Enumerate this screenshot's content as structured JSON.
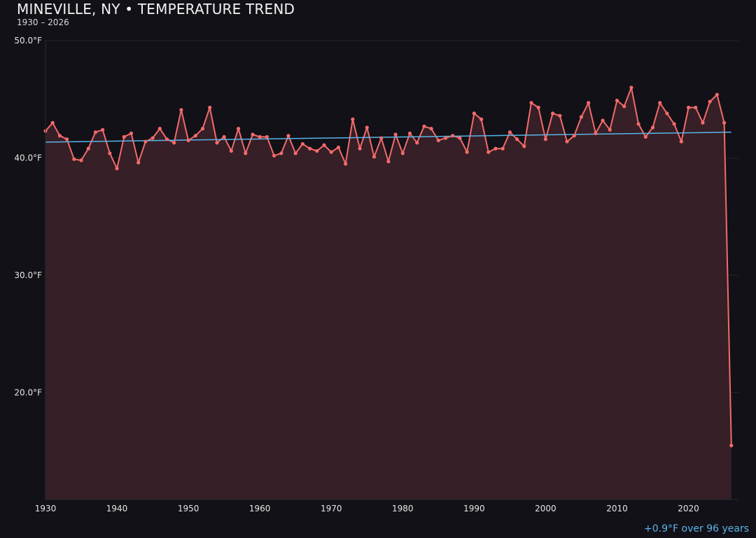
{
  "chart_data": {
    "type": "area",
    "title": "MINEVILLE, NY • TEMPERATURE TREND",
    "subtitle": "1930 – 2026",
    "annotation": "+0.9°F over 96 years",
    "xlim": [
      1930,
      2027
    ],
    "ylim": [
      10.9,
      50
    ],
    "grid": true,
    "x_ticks": [
      1930,
      1940,
      1950,
      1960,
      1970,
      1980,
      1990,
      2000,
      2010,
      2020
    ],
    "y_ticks": [
      20,
      30,
      40,
      50
    ],
    "y_tick_labels": [
      "20.0°F",
      "30.0°F",
      "40.0°F",
      "50.0°F"
    ],
    "x": [
      1930,
      1931,
      1932,
      1933,
      1934,
      1935,
      1936,
      1937,
      1938,
      1939,
      1940,
      1941,
      1942,
      1943,
      1944,
      1945,
      1946,
      1947,
      1948,
      1949,
      1950,
      1951,
      1952,
      1953,
      1954,
      1955,
      1956,
      1957,
      1958,
      1959,
      1960,
      1961,
      1962,
      1963,
      1964,
      1965,
      1966,
      1967,
      1968,
      1969,
      1970,
      1971,
      1972,
      1973,
      1974,
      1975,
      1976,
      1977,
      1978,
      1979,
      1980,
      1981,
      1982,
      1983,
      1984,
      1985,
      1986,
      1987,
      1988,
      1989,
      1990,
      1991,
      1992,
      1993,
      1994,
      1995,
      1996,
      1997,
      1998,
      1999,
      2000,
      2001,
      2002,
      2003,
      2004,
      2005,
      2006,
      2007,
      2008,
      2009,
      2010,
      2011,
      2012,
      2013,
      2014,
      2015,
      2016,
      2017,
      2018,
      2019,
      2020,
      2021,
      2022,
      2023,
      2024,
      2025,
      2026
    ],
    "values": [
      42.3,
      43.0,
      41.9,
      41.6,
      39.9,
      39.8,
      40.8,
      42.2,
      42.4,
      40.4,
      39.1,
      41.8,
      42.1,
      39.6,
      41.4,
      41.7,
      42.5,
      41.6,
      41.3,
      44.1,
      41.5,
      41.9,
      42.5,
      44.3,
      41.3,
      41.8,
      40.6,
      42.5,
      40.4,
      42.0,
      41.8,
      41.8,
      40.2,
      40.4,
      41.9,
      40.4,
      41.2,
      40.8,
      40.6,
      41.1,
      40.5,
      40.9,
      39.5,
      43.3,
      40.8,
      42.6,
      40.1,
      41.7,
      39.7,
      42.0,
      40.4,
      42.1,
      41.3,
      42.7,
      42.5,
      41.5,
      41.7,
      41.9,
      41.7,
      40.5,
      43.8,
      43.3,
      40.5,
      40.8,
      40.8,
      42.2,
      41.6,
      41.0,
      44.7,
      44.3,
      41.6,
      43.8,
      43.6,
      41.4,
      41.9,
      43.5,
      44.7,
      42.1,
      43.2,
      42.4,
      44.9,
      44.4,
      46.0,
      42.9,
      41.8,
      42.6,
      44.7,
      43.8,
      42.9,
      41.4,
      44.3,
      44.3,
      43.0,
      44.8,
      45.4,
      43.0,
      15.5
    ],
    "trend": {
      "start": [
        1930,
        41.35
      ],
      "end": [
        2026,
        42.2
      ]
    },
    "colors": {
      "line": "#f26b6b",
      "fill": "#361f26",
      "trend": "#5ab4e8",
      "background": "#121117",
      "grid": "#2a2328"
    }
  }
}
